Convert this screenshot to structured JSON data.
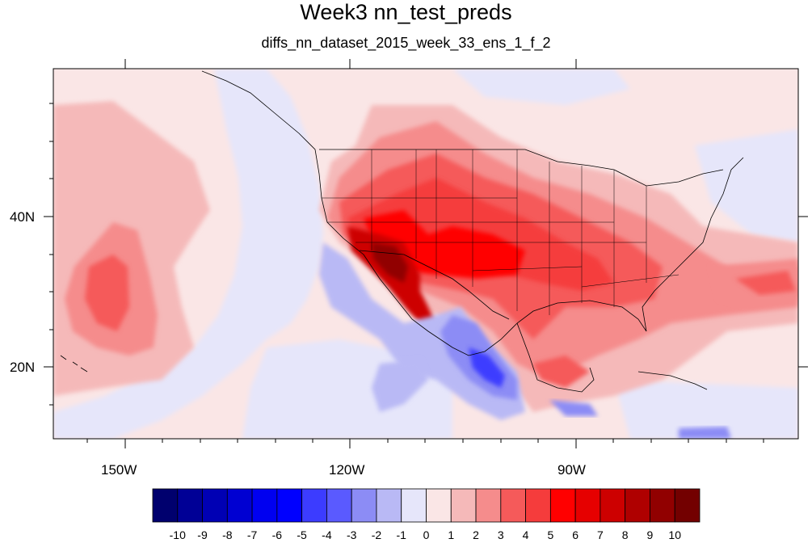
{
  "title": "Week3 nn_test_preds",
  "subtitle": "diffs_nn_dataset_2015_week_33_ens_1_f_2",
  "axes": {
    "lon_labels": [
      "150W",
      "120W",
      "90W"
    ],
    "lat_labels": [
      "40N",
      "20N"
    ],
    "lon_range": [
      -160,
      -58
    ],
    "lat_range": [
      10,
      59
    ]
  },
  "colorbar": {
    "labels": [
      "-10",
      "-9",
      "-8",
      "-7",
      "-6",
      "-5",
      "-4",
      "-3",
      "-2",
      "-1",
      "0",
      "1",
      "2",
      "3",
      "4",
      "5",
      "6",
      "7",
      "8",
      "9",
      "10"
    ],
    "colors": [
      "#00006e",
      "#000096",
      "#0000b4",
      "#0000d2",
      "#0000f0",
      "#0000ff",
      "#3c3cff",
      "#5a5aff",
      "#8c8cf5",
      "#b9b9f5",
      "#e6e6fa",
      "#fae6e6",
      "#f5b9b9",
      "#f58c8c",
      "#f55a5a",
      "#f53c3c",
      "#ff0000",
      "#e60000",
      "#cd0000",
      "#af0000",
      "#910000",
      "#730000"
    ]
  }
}
